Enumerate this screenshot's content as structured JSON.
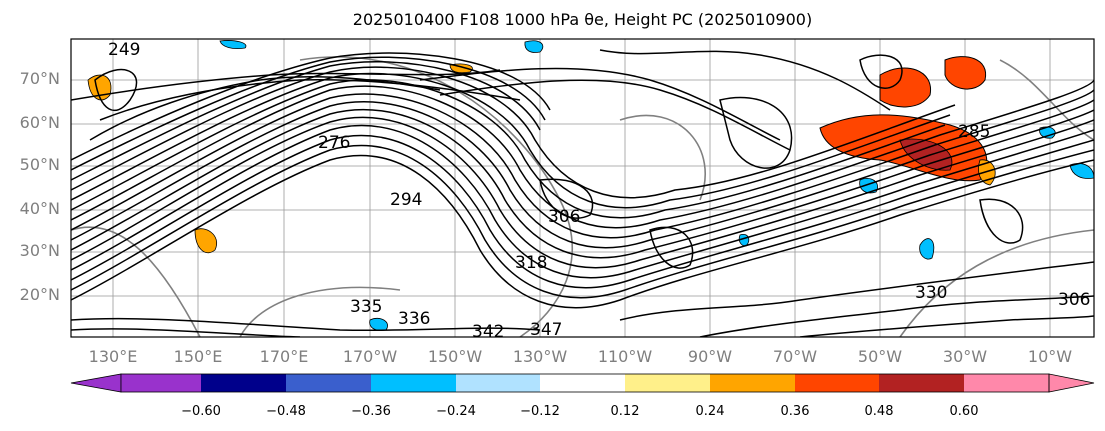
{
  "title": "2025010400 F108 1000 hPa θe, Height PC (2025010900)",
  "map": {
    "lat_labels": [
      "70°N",
      "60°N",
      "50°N",
      "40°N",
      "30°N",
      "20°N"
    ],
    "lon_labels": [
      "130°E",
      "150°E",
      "170°E",
      "170°W",
      "150°W",
      "130°W",
      "110°W",
      "90°W",
      "70°W",
      "50°W",
      "30°W",
      "10°W"
    ],
    "contour_labels": [
      "249",
      "276",
      "294",
      "306",
      "318",
      "335",
      "336",
      "342",
      "347",
      "330",
      "285",
      "306"
    ]
  },
  "colorbar": {
    "tick_labels": [
      "−0.60",
      "−0.48",
      "−0.36",
      "−0.24",
      "−0.12",
      "0.12",
      "0.24",
      "0.36",
      "0.48",
      "0.60"
    ],
    "colors": [
      "#9932cc",
      "#00008b",
      "#3a5fcd",
      "#00bfff",
      "#b0e2ff",
      "#ffffff",
      "#fff08a",
      "#ffa500",
      "#ff4500",
      "#b22222",
      "#ff88aa"
    ]
  }
}
